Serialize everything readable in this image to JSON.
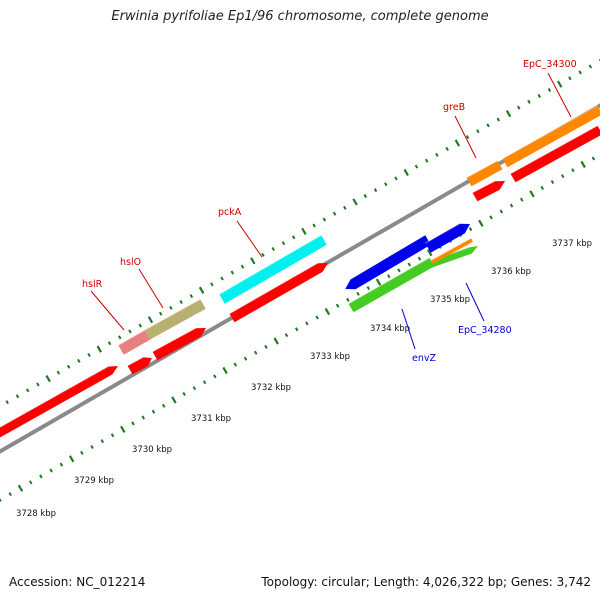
{
  "title": "Erwinia pyrifoliae Ep1/96 chromosome, complete genome",
  "footer": {
    "accession": "Accession: NC_012214",
    "summary": "Topology: circular; Length: 4,026,322 bp; Genes: 3,742"
  },
  "colors": {
    "backbone": "#8a8a8a",
    "ticks": "#1f7a1f",
    "label_red": "#cc0000",
    "label_blue": "#0000cc",
    "cds_red": "#ff0000"
  },
  "scale": {
    "unit": "kbp",
    "ticks": [
      {
        "label": "3728 kbp"
      },
      {
        "label": "3729 kbp"
      },
      {
        "label": "3730 kbp"
      },
      {
        "label": "3731 kbp"
      },
      {
        "label": "3732 kbp"
      },
      {
        "label": "3733 kbp"
      },
      {
        "label": "3734 kbp"
      },
      {
        "label": "3735 kbp"
      },
      {
        "label": "3736 kbp"
      },
      {
        "label": "3737 kbp"
      }
    ]
  },
  "features": [
    {
      "id": "hslR",
      "label": "hslR",
      "label_color": "#cc0000",
      "color": "#e88080"
    },
    {
      "id": "hslO",
      "label": "hslO",
      "label_color": "#cc0000",
      "color": "#b8b070"
    },
    {
      "id": "pckA",
      "label": "pckA",
      "label_color": "#cc0000",
      "color": "#00f0f0"
    },
    {
      "id": "envZ",
      "label": "envZ",
      "label_color": "#0000cc",
      "color": "#0000ee"
    },
    {
      "id": "EpC_34280",
      "label": "EpC_34280",
      "label_color": "#0000cc",
      "color": "#44cc22"
    },
    {
      "id": "greB",
      "label": "greB",
      "label_color": "#cc0000",
      "color": "#ff8800"
    },
    {
      "id": "EpC_34300",
      "label": "EpC_34300",
      "label_color": "#cc0000",
      "color": "#ff8800"
    }
  ]
}
